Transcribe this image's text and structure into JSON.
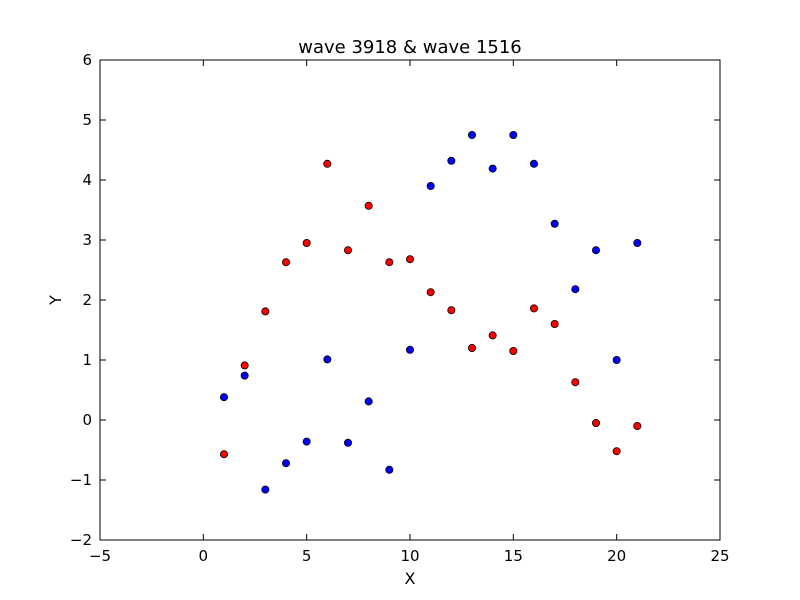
{
  "chart_data": {
    "type": "scatter",
    "title": "wave 3918 & wave 1516",
    "xlabel": "X",
    "ylabel": "Y",
    "xlim": [
      -5,
      25
    ],
    "ylim": [
      -2,
      6
    ],
    "xticks": [
      "−5",
      "0",
      "5",
      "10",
      "15",
      "20",
      "25"
    ],
    "yticks": [
      "−2",
      "−1",
      "0",
      "1",
      "2",
      "3",
      "4",
      "5",
      "6"
    ],
    "grid": false,
    "series": [
      {
        "color": "#0000ff",
        "x": [
          1,
          2,
          3,
          4,
          5,
          6,
          7,
          8,
          9,
          10,
          11,
          12,
          13,
          14,
          15,
          16,
          17,
          18,
          19,
          20,
          21
        ],
        "y": [
          0.38,
          0.74,
          -1.16,
          -0.72,
          -0.36,
          1.01,
          -0.38,
          0.31,
          -0.83,
          1.17,
          3.9,
          4.32,
          4.75,
          4.19,
          4.75,
          4.27,
          3.27,
          2.18,
          2.83,
          1.0,
          2.95
        ]
      },
      {
        "color": "#ff0000",
        "x": [
          1,
          2,
          3,
          4,
          5,
          6,
          7,
          8,
          9,
          10,
          11,
          12,
          13,
          14,
          15,
          16,
          17,
          18,
          19,
          20,
          21
        ],
        "y": [
          -0.57,
          0.91,
          1.81,
          2.63,
          2.95,
          4.27,
          2.83,
          3.57,
          2.63,
          2.68,
          2.13,
          1.83,
          1.2,
          1.41,
          1.15,
          1.86,
          1.6,
          0.63,
          -0.05,
          -0.52,
          -0.1
        ]
      }
    ]
  }
}
